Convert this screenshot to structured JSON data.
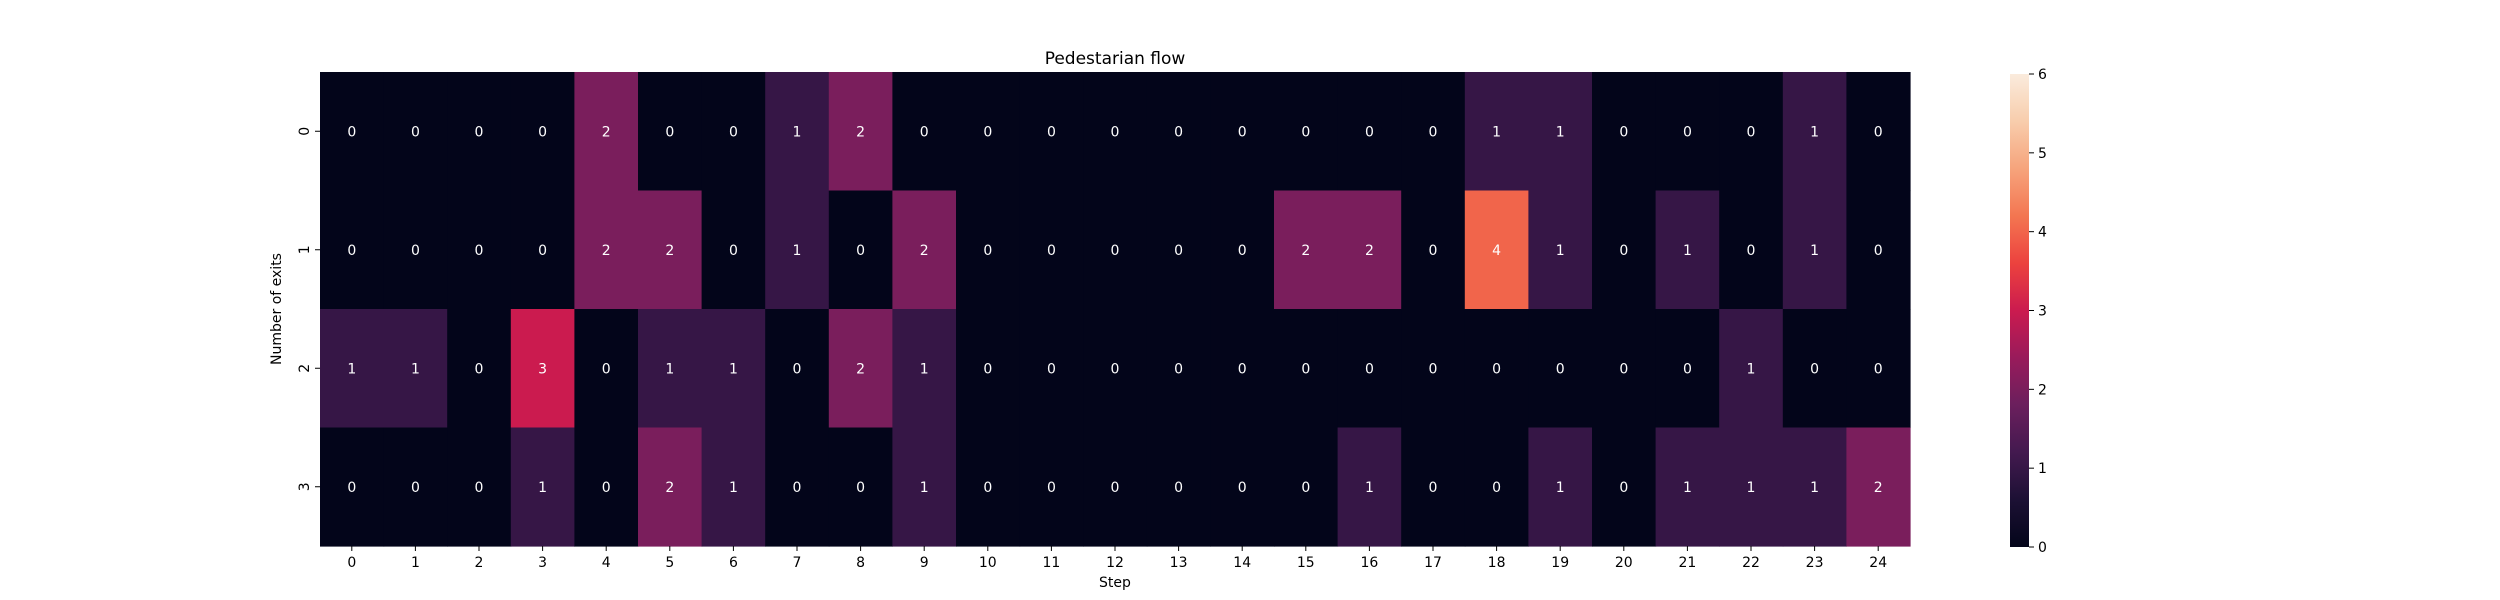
{
  "chart_data": {
    "type": "heatmap",
    "title": "Pedestarian flow",
    "xlabel": "Step",
    "ylabel": "Number of exits",
    "x_categories": [
      "0",
      "1",
      "2",
      "3",
      "4",
      "5",
      "6",
      "7",
      "8",
      "9",
      "10",
      "11",
      "12",
      "13",
      "14",
      "15",
      "16",
      "17",
      "18",
      "19",
      "20",
      "21",
      "22",
      "23",
      "24"
    ],
    "y_categories": [
      "0",
      "1",
      "2",
      "3"
    ],
    "values": [
      [
        0,
        0,
        0,
        0,
        2,
        0,
        0,
        1,
        2,
        0,
        0,
        0,
        0,
        0,
        0,
        0,
        0,
        0,
        1,
        1,
        0,
        0,
        0,
        1,
        0
      ],
      [
        0,
        0,
        0,
        0,
        2,
        2,
        0,
        1,
        0,
        2,
        0,
        0,
        0,
        0,
        0,
        2,
        2,
        0,
        4,
        1,
        0,
        1,
        0,
        1,
        0
      ],
      [
        1,
        1,
        0,
        3,
        0,
        1,
        1,
        0,
        2,
        1,
        0,
        0,
        0,
        0,
        0,
        0,
        0,
        0,
        0,
        0,
        0,
        0,
        1,
        0,
        0
      ],
      [
        0,
        0,
        0,
        1,
        0,
        2,
        1,
        0,
        0,
        1,
        0,
        0,
        0,
        0,
        0,
        0,
        1,
        0,
        0,
        1,
        0,
        1,
        1,
        1,
        2
      ]
    ],
    "colorbar": {
      "min": 0,
      "max": 6,
      "ticks": [
        "0",
        "1",
        "2",
        "3",
        "4",
        "5",
        "6"
      ],
      "colormap": "rocket"
    },
    "annotated": true,
    "grid": false
  }
}
